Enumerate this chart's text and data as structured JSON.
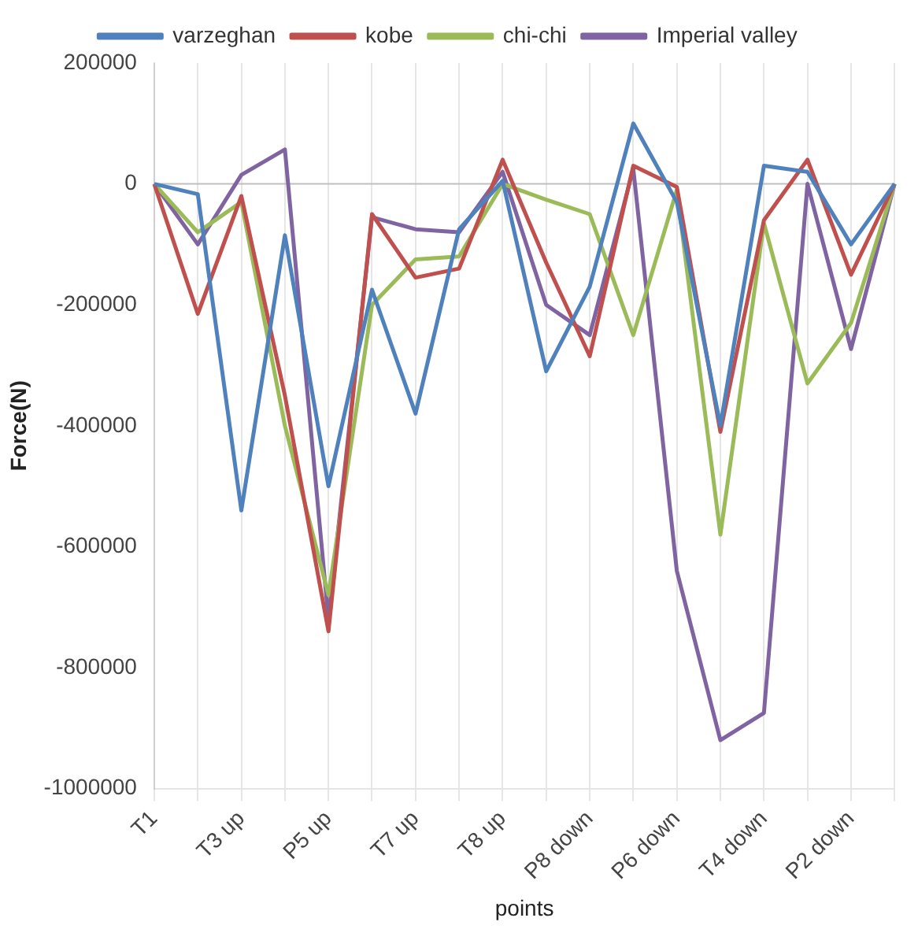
{
  "chart_data": {
    "type": "line",
    "xlabel": "points",
    "ylabel": "Force(N)",
    "categories": [
      "T1",
      null,
      "T3 up",
      null,
      "P5 up",
      null,
      "T7 up",
      null,
      "T8 up",
      null,
      "P8 down",
      null,
      "P6 down",
      null,
      "T4 down",
      null,
      "P2 down",
      null
    ],
    "series": [
      {
        "name": "varzeghan",
        "color": "#4f81bd",
        "values": [
          0,
          -17000,
          -540000,
          -85000,
          -500000,
          -175000,
          -380000,
          -75000,
          5000,
          -310000,
          -170000,
          100000,
          -30000,
          -400000,
          30000,
          20000,
          -100000,
          0
        ]
      },
      {
        "name": "kobe",
        "color": "#c0504d",
        "values": [
          0,
          -215000,
          -20000,
          -350000,
          -740000,
          -50000,
          -155000,
          -140000,
          40000,
          -130000,
          -285000,
          30000,
          -5000,
          -410000,
          -60000,
          40000,
          -150000,
          0
        ]
      },
      {
        "name": "chi-chi",
        "color": "#9bbb59",
        "values": [
          0,
          -80000,
          -30000,
          -400000,
          -680000,
          -200000,
          -125000,
          -120000,
          0,
          -26000,
          -50000,
          -250000,
          -10000,
          -580000,
          -65000,
          -330000,
          -230000,
          0
        ]
      },
      {
        "name": "Imperial valley",
        "color": "#8064a2",
        "values": [
          0,
          -100000,
          15000,
          57000,
          -720000,
          -55000,
          -75000,
          -80000,
          20000,
          -200000,
          -250000,
          25000,
          -640000,
          -920000,
          -875000,
          0,
          -273000,
          0
        ]
      }
    ],
    "ylim": [
      -1000000,
      200000
    ],
    "yticks": [
      -1000000,
      -800000,
      -600000,
      -400000,
      -200000,
      0,
      200000
    ],
    "grid": "x",
    "legend": "top",
    "marker": "none",
    "line_style": "solid"
  }
}
